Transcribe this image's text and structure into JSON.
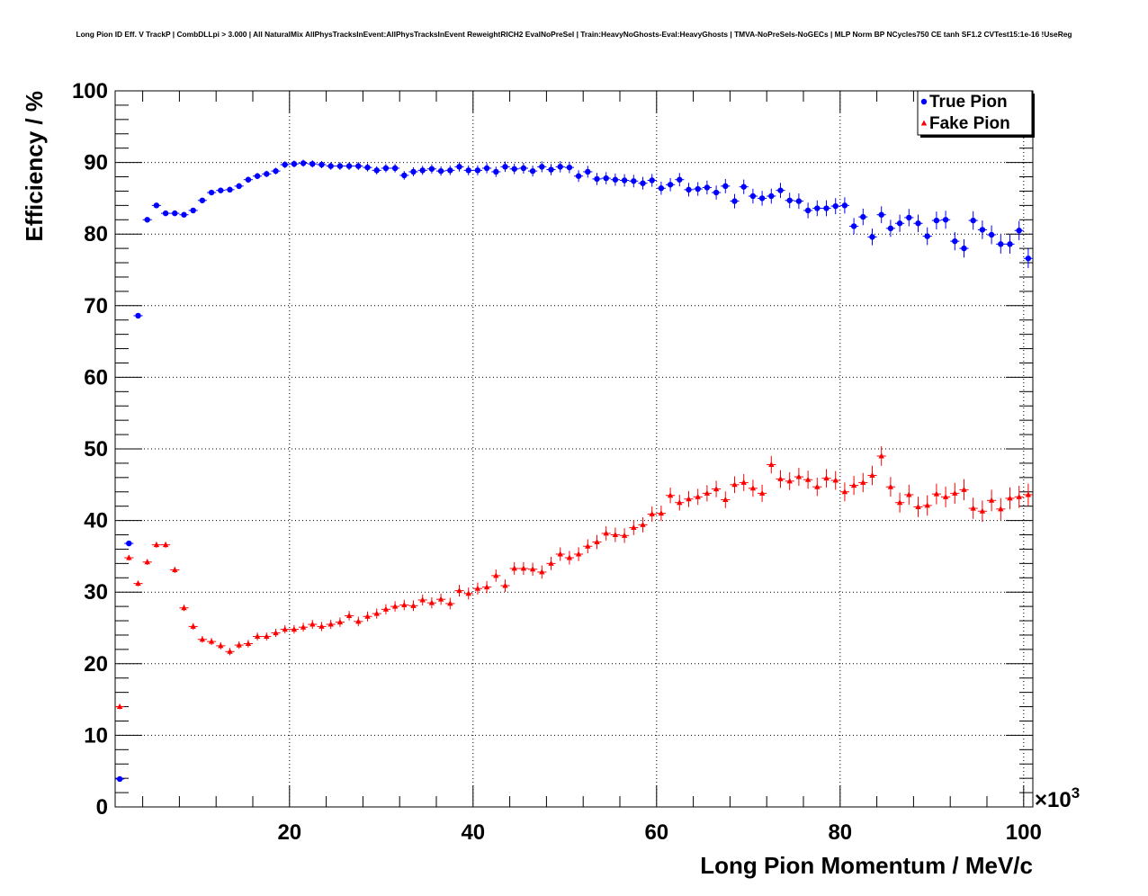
{
  "chart_data": {
    "type": "scatter",
    "title": "Long Pion ID Eff. V TrackP | CombDLLpi > 3.000 | All NaturalMix AllPhysTracksInEvent:AllPhysTracksInEvent ReweightRICH2 EvalNoPreSel | Train:HeavyNoGhosts-Eval:HeavyGhosts | TMVA-NoPreSels-NoGECs | MLP Norm BP NCycles750 CE tanh SF1.2 CVTest15:1e-16 !UseReg",
    "xlabel": "Long Pion Momentum / MeV/c",
    "ylabel": "Efficiency / %",
    "x_multiplier_label": "×10",
    "x_multiplier_exp": "3",
    "xlim": [
      1,
      101
    ],
    "ylim": [
      0,
      100
    ],
    "x_ticks": [
      20,
      40,
      60,
      80,
      100
    ],
    "y_ticks": [
      0,
      10,
      20,
      30,
      40,
      50,
      60,
      70,
      80,
      90,
      100
    ],
    "grid": true,
    "legend_position": "top-right",
    "series": [
      {
        "name": "True Pion",
        "color": "#0000ff",
        "marker": "circle",
        "x": [
          1.5,
          2.5,
          3.5,
          4.5,
          5.5,
          6.5,
          7.5,
          8.5,
          9.5,
          10.5,
          11.5,
          12.5,
          13.5,
          14.5,
          15.5,
          16.5,
          17.5,
          18.5,
          19.5,
          20.5,
          21.5,
          22.5,
          23.5,
          24.5,
          25.5,
          26.5,
          27.5,
          28.5,
          29.5,
          30.5,
          31.5,
          32.5,
          33.5,
          34.5,
          35.5,
          36.5,
          37.5,
          38.5,
          39.5,
          40.5,
          41.5,
          42.5,
          43.5,
          44.5,
          45.5,
          46.5,
          47.5,
          48.5,
          49.5,
          50.5,
          51.5,
          52.5,
          53.5,
          54.5,
          55.5,
          56.5,
          57.5,
          58.5,
          59.5,
          60.5,
          61.5,
          62.5,
          63.5,
          64.5,
          65.5,
          66.5,
          67.5,
          68.5,
          69.5,
          70.5,
          71.5,
          72.5,
          73.5,
          74.5,
          75.5,
          76.5,
          77.5,
          78.5,
          79.5,
          80.5,
          81.5,
          82.5,
          83.5,
          84.5,
          85.5,
          86.5,
          87.5,
          88.5,
          89.5,
          90.5,
          91.5,
          92.5,
          93.5,
          94.5,
          95.5,
          96.5,
          97.5,
          98.5,
          99.5,
          100.5
        ],
        "y": [
          3.9,
          36.8,
          68.6,
          82.0,
          84.0,
          82.9,
          82.9,
          82.7,
          83.3,
          84.7,
          85.8,
          86.1,
          86.2,
          86.7,
          87.6,
          88.1,
          88.4,
          88.8,
          89.7,
          89.8,
          89.9,
          89.8,
          89.7,
          89.5,
          89.5,
          89.5,
          89.5,
          89.3,
          88.9,
          89.2,
          89.2,
          88.2,
          88.7,
          88.9,
          89.1,
          88.8,
          88.9,
          89.4,
          88.9,
          88.9,
          89.2,
          88.7,
          89.4,
          89.1,
          89.2,
          88.8,
          89.4,
          89.0,
          89.4,
          89.3,
          88.1,
          88.7,
          87.7,
          87.8,
          87.6,
          87.5,
          87.4,
          87.1,
          87.5,
          86.4,
          86.9,
          87.6,
          86.2,
          86.3,
          86.5,
          85.8,
          86.7,
          84.6,
          86.6,
          85.3,
          85.0,
          85.3,
          86.1,
          84.7,
          84.6,
          83.3,
          83.6,
          83.6,
          83.9,
          84.0,
          81.1,
          82.4,
          79.6,
          82.7,
          80.8,
          81.5,
          82.3,
          81.5,
          79.7,
          81.9,
          82.0,
          79.0,
          78.0,
          81.9,
          80.6,
          79.9,
          78.6,
          78.6,
          80.5,
          76.6
        ]
      },
      {
        "name": "Fake Pion",
        "color": "#ff0000",
        "marker": "triangle",
        "x": [
          1.5,
          2.5,
          3.5,
          4.5,
          5.5,
          6.5,
          7.5,
          8.5,
          9.5,
          10.5,
          11.5,
          12.5,
          13.5,
          14.5,
          15.5,
          16.5,
          17.5,
          18.5,
          19.5,
          20.5,
          21.5,
          22.5,
          23.5,
          24.5,
          25.5,
          26.5,
          27.5,
          28.5,
          29.5,
          30.5,
          31.5,
          32.5,
          33.5,
          34.5,
          35.5,
          36.5,
          37.5,
          38.5,
          39.5,
          40.5,
          41.5,
          42.5,
          43.5,
          44.5,
          45.5,
          46.5,
          47.5,
          48.5,
          49.5,
          50.5,
          51.5,
          52.5,
          53.5,
          54.5,
          55.5,
          56.5,
          57.5,
          58.5,
          59.5,
          60.5,
          61.5,
          62.5,
          63.5,
          64.5,
          65.5,
          66.5,
          67.5,
          68.5,
          69.5,
          70.5,
          71.5,
          72.5,
          73.5,
          74.5,
          75.5,
          76.5,
          77.5,
          78.5,
          79.5,
          80.5,
          81.5,
          82.5,
          83.5,
          84.5,
          85.5,
          86.5,
          87.5,
          88.5,
          89.5,
          90.5,
          91.5,
          92.5,
          93.5,
          94.5,
          95.5,
          96.5,
          97.5,
          98.5,
          99.5,
          100.5
        ],
        "y": [
          14.0,
          34.8,
          31.2,
          34.2,
          36.6,
          36.6,
          33.1,
          27.8,
          25.2,
          23.4,
          23.1,
          22.5,
          21.7,
          22.6,
          22.8,
          23.8,
          23.8,
          24.3,
          24.8,
          24.8,
          25.1,
          25.5,
          25.2,
          25.5,
          25.8,
          26.7,
          25.9,
          26.6,
          27.0,
          27.6,
          28.0,
          28.2,
          28.1,
          28.9,
          28.5,
          29.0,
          28.4,
          30.2,
          29.8,
          30.5,
          30.7,
          32.3,
          30.9,
          33.3,
          33.3,
          33.2,
          32.8,
          34.0,
          35.3,
          34.8,
          35.3,
          36.4,
          37.0,
          38.2,
          38.0,
          37.9,
          39.0,
          39.4,
          40.9,
          41.0,
          43.5,
          42.5,
          43.0,
          43.3,
          43.8,
          44.4,
          42.9,
          45.0,
          45.3,
          44.5,
          43.8,
          47.8,
          45.8,
          45.5,
          46.1,
          45.7,
          44.7,
          45.9,
          45.6,
          44.0,
          44.9,
          45.3,
          46.3,
          49.0,
          44.7,
          42.5,
          43.6,
          41.9,
          42.1,
          43.7,
          43.3,
          43.8,
          44.3,
          41.7,
          41.3,
          42.8,
          41.6,
          43.1,
          43.3,
          43.6
        ]
      }
    ]
  }
}
